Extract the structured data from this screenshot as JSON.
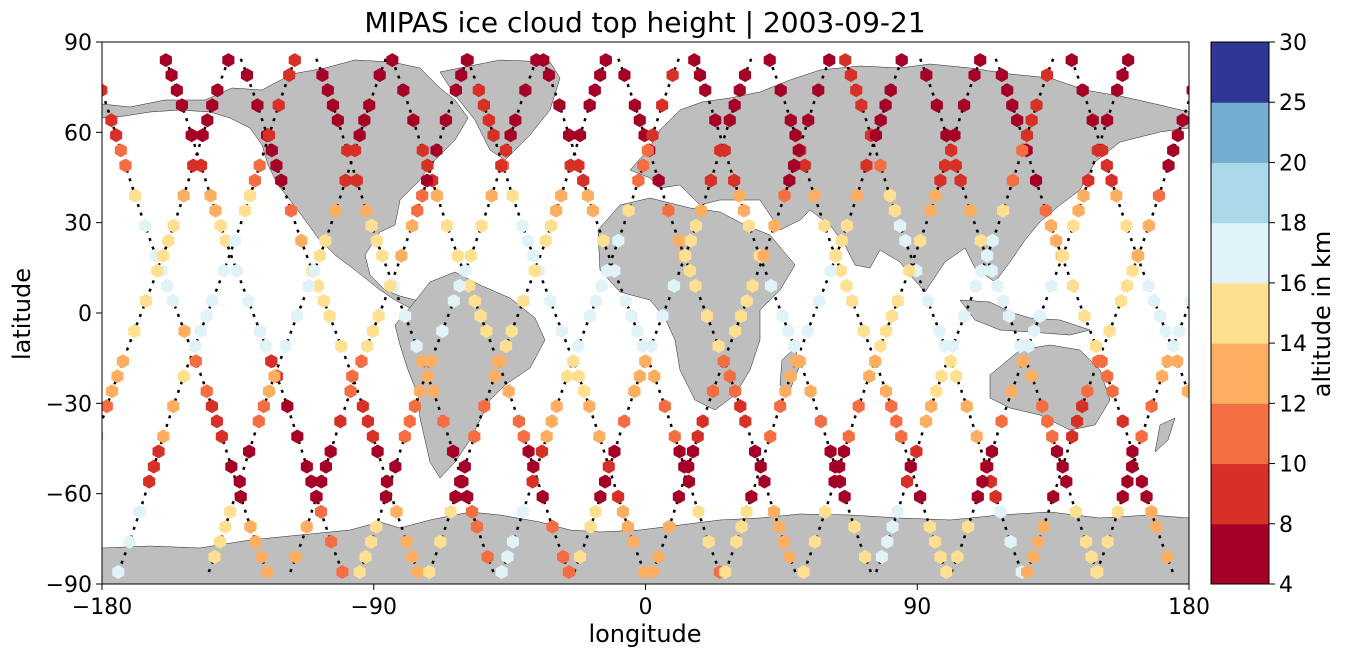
{
  "chart_data": {
    "type": "scatter",
    "title": "MIPAS ice cloud top height | 2003-09-21",
    "xlabel": "longitude",
    "ylabel": "latitude",
    "xlim": [
      -180,
      180
    ],
    "ylim": [
      -90,
      90
    ],
    "xticks": [
      -180,
      -90,
      0,
      90,
      180
    ],
    "yticks": [
      -90,
      -60,
      -30,
      0,
      30,
      60,
      90
    ],
    "xtick_labels": [
      "−180",
      "−90",
      "0",
      "90",
      "180"
    ],
    "ytick_labels": [
      "−90",
      "−60",
      "−30",
      "0",
      "30",
      "60",
      "90"
    ],
    "land_color": "#bebebe",
    "grid": false,
    "colorbar": {
      "label": "altitude in km",
      "ticks": [
        "4",
        "8",
        "10",
        "12",
        "14",
        "16",
        "18",
        "20",
        "25",
        "30"
      ],
      "bins": [
        {
          "from": 4,
          "to": 8,
          "color": "#a50026"
        },
        {
          "from": 8,
          "to": 10,
          "color": "#d73027"
        },
        {
          "from": 10,
          "to": 12,
          "color": "#f46d43"
        },
        {
          "from": 12,
          "to": 14,
          "color": "#fdae61"
        },
        {
          "from": 14,
          "to": 16,
          "color": "#fee090"
        },
        {
          "from": 16,
          "to": 18,
          "color": "#e0f3f8"
        },
        {
          "from": 18,
          "to": 20,
          "color": "#abd9e9"
        },
        {
          "from": 20,
          "to": 25,
          "color": "#74add1"
        },
        {
          "from": 25,
          "to": 30,
          "color": "#313695"
        }
      ]
    },
    "orbits": [
      {
        "type": "desc",
        "lon_equator": -155
      },
      {
        "type": "desc",
        "lon_equator": -130
      },
      {
        "type": "desc",
        "lon_equator": -105
      },
      {
        "type": "desc",
        "lon_equator": -80
      },
      {
        "type": "desc",
        "lon_equator": -55
      },
      {
        "type": "desc",
        "lon_equator": -30
      },
      {
        "type": "desc",
        "lon_equator": -5
      },
      {
        "type": "desc",
        "lon_equator": 20
      },
      {
        "type": "desc",
        "lon_equator": 45
      },
      {
        "type": "desc",
        "lon_equator": 70
      },
      {
        "type": "desc",
        "lon_equator": 95
      },
      {
        "type": "desc",
        "lon_equator": 120
      },
      {
        "type": "desc",
        "lon_equator": 145
      },
      {
        "type": "desc",
        "lon_equator": 170
      },
      {
        "type": "asc",
        "lon_equator": -167
      },
      {
        "type": "asc",
        "lon_equator": -145
      },
      {
        "type": "asc",
        "lon_equator": -115
      },
      {
        "type": "asc",
        "lon_equator": -88
      },
      {
        "type": "asc",
        "lon_equator": -65
      },
      {
        "type": "asc",
        "lon_equator": -42
      },
      {
        "type": "asc",
        "lon_equator": -18
      },
      {
        "type": "asc",
        "lon_equator": 6
      },
      {
        "type": "asc",
        "lon_equator": 32
      },
      {
        "type": "asc",
        "lon_equator": 56
      },
      {
        "type": "asc",
        "lon_equator": 82
      },
      {
        "type": "asc",
        "lon_equator": 106
      },
      {
        "type": "asc",
        "lon_equator": 131
      },
      {
        "type": "asc",
        "lon_equator": 156
      },
      {
        "type": "asc",
        "lon_equator": 179
      }
    ],
    "cloud_profile_by_lat": [
      {
        "lat_min": 55,
        "lat_max": 90,
        "altitude_km": 7
      },
      {
        "lat_min": 40,
        "lat_max": 55,
        "altitude_km": 9
      },
      {
        "lat_min": 30,
        "lat_max": 40,
        "altitude_km": 13
      },
      {
        "lat_min": 15,
        "lat_max": 30,
        "altitude_km": 15
      },
      {
        "lat_min": -15,
        "lat_max": 15,
        "altitude_km": 16
      },
      {
        "lat_min": -30,
        "lat_max": -15,
        "altitude_km": 13
      },
      {
        "lat_min": -45,
        "lat_max": -30,
        "altitude_km": 11
      },
      {
        "lat_min": -65,
        "lat_max": -45,
        "altitude_km": 7
      },
      {
        "lat_min": -90,
        "lat_max": -65,
        "altitude_km": 15
      }
    ]
  }
}
